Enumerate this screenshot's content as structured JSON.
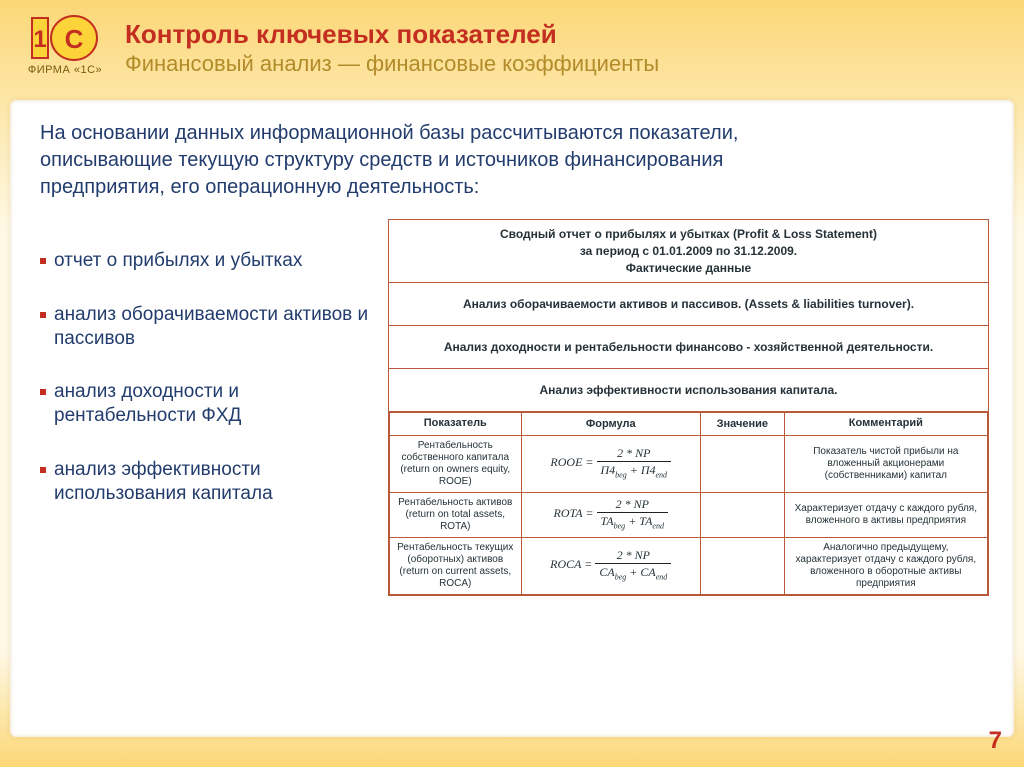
{
  "logo_caption": "ФИРМА «1С»",
  "header": {
    "title": "Контроль ключевых показателей",
    "subtitle": "Финансовый анализ — финансовые коэффициенты"
  },
  "intro": "На основании данных информационной базы рассчитываются показатели, описывающие текущую структуру средств и источников финансирования предприятия, его операционную деятельность:",
  "bullets": [
    "отчет о прибылях и убытках",
    "анализ оборачиваемости активов и пассивов",
    "анализ доходности и рентабельности ФХД",
    "анализ эффективности использования капитала"
  ],
  "report": {
    "title_line1": "Сводный отчет о прибылях и убытках (Profit & Loss Statement)",
    "title_line2": "за период с 01.01.2009 по 31.12.2009.",
    "title_line3": "Фактические данные",
    "section2": "Анализ оборачиваемости активов и пассивов. (Assets & liabilities turnover).",
    "section3": "Анализ доходности и рентабельности финансово - хозяйственной деятельности.",
    "section4": "Анализ эффективности использования капитала.",
    "table": {
      "headers": [
        "Показатель",
        "Формула",
        "Значение",
        "Комментарий"
      ],
      "rows": [
        {
          "indicator": "Рентабельность собственного капитала (return on owners equity, ROOE)",
          "formula_lhs": "ROOE",
          "formula_num": "2 * NP",
          "formula_den_a": "П4",
          "formula_den_a_sub": "beg",
          "formula_den_b": "П4",
          "formula_den_b_sub": "end",
          "value": "",
          "comment": "Показатель чистой прибыли на вложенный акционерами (собственниками) капитал"
        },
        {
          "indicator": "Рентабельность активов (return on total assets, ROTA)",
          "formula_lhs": "ROTA",
          "formula_num": "2 * NP",
          "formula_den_a": "TA",
          "formula_den_a_sub": "beg",
          "formula_den_b": "TA",
          "formula_den_b_sub": "end",
          "value": "",
          "comment": "Характеризует отдачу с каждого рубля, вложенного в активы предприятия"
        },
        {
          "indicator": "Рентабельность текущих (оборотных) активов (return on current assets, ROCA)",
          "formula_lhs": "ROCA",
          "formula_num": "2 * NP",
          "formula_den_a": "CA",
          "formula_den_a_sub": "beg",
          "formula_den_b": "CA",
          "formula_den_b_sub": "end",
          "value": "",
          "comment": "Аналогично предыдущему, характеризует отдачу с каждого рубля, вложенного в оборотные активы предприятия"
        }
      ]
    }
  },
  "page_number": "7",
  "colors": {
    "brand_red": "#c32e20",
    "brand_gold": "#b28b2a",
    "text_navy": "#223c6e",
    "border_brick": "#b85a3a",
    "page_bg": "#fef9e6",
    "frame_accent": "#fcd777"
  }
}
